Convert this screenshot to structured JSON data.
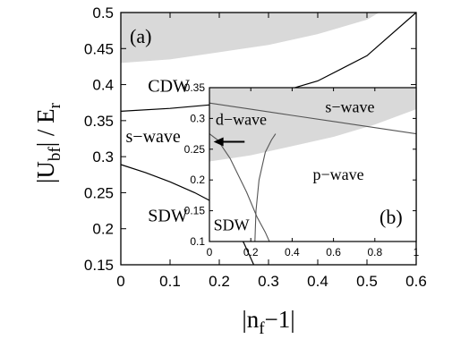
{
  "chart_data": [
    {
      "type": "line",
      "panel_label": "(a)",
      "xlabel": {
        "main": "|n",
        "sub": "f",
        "tail": "−1|"
      },
      "ylabel": {
        "main": "|U",
        "sub": "bf",
        "mid": "| / E",
        "sub2": "r"
      },
      "xlim": [
        0,
        0.6
      ],
      "ylim": [
        0.15,
        0.5
      ],
      "xticks": [
        0,
        0.1,
        0.2,
        0.3,
        0.4,
        0.5,
        0.6
      ],
      "yticks": [
        0.15,
        0.2,
        0.25,
        0.3,
        0.35,
        0.4,
        0.45,
        0.5
      ],
      "shaded_region": {
        "color": "#d9d9d9",
        "upper": [
          [
            0,
            0.5
          ],
          [
            0.6,
            0.5
          ]
        ],
        "lower": [
          [
            0,
            0.43
          ],
          [
            0.1,
            0.435
          ],
          [
            0.2,
            0.445
          ],
          [
            0.3,
            0.455
          ],
          [
            0.4,
            0.47
          ],
          [
            0.5,
            0.49
          ],
          [
            0.525,
            0.5
          ]
        ]
      },
      "series": [
        {
          "points": [
            [
              0,
              0.363
            ],
            [
              0.1,
              0.367
            ],
            [
              0.2,
              0.373
            ],
            [
              0.3,
              0.385
            ],
            [
              0.4,
              0.405
            ],
            [
              0.5,
              0.44
            ],
            [
              0.6,
              0.5
            ]
          ]
        },
        {
          "points": [
            [
              0,
              0.289
            ],
            [
              0.05,
              0.278
            ],
            [
              0.1,
              0.265
            ],
            [
              0.15,
              0.25
            ],
            [
              0.2,
              0.232
            ],
            [
              0.22,
              0.215
            ],
            [
              0.25,
              0.18
            ],
            [
              0.27,
              0.15
            ]
          ]
        }
      ],
      "region_labels": [
        {
          "text": "CDW",
          "x": 0.055,
          "y": 0.39
        },
        {
          "text": "s−wave",
          "x": 0.01,
          "y": 0.32
        },
        {
          "text": "SDW",
          "x": 0.055,
          "y": 0.21
        }
      ]
    },
    {
      "type": "line",
      "panel_label": "(b)",
      "xlim": [
        0,
        1
      ],
      "ylim": [
        0.1,
        0.35
      ],
      "xticks": [
        0,
        0.2,
        0.4,
        0.6,
        0.8,
        1
      ],
      "yticks": [
        0.1,
        0.15,
        0.2,
        0.25,
        0.3,
        0.35
      ],
      "shaded_region": {
        "color": "#d9d9d9",
        "upper": [
          [
            0,
            0.35
          ],
          [
            1,
            0.35
          ]
        ],
        "lower": [
          [
            0,
            0.23
          ],
          [
            0.2,
            0.24
          ],
          [
            0.4,
            0.255
          ],
          [
            0.6,
            0.27
          ],
          [
            0.8,
            0.29
          ],
          [
            1,
            0.315
          ]
        ]
      },
      "series": [
        {
          "points": [
            [
              0,
              0.325
            ],
            [
              0.2,
              0.315
            ],
            [
              0.4,
              0.305
            ],
            [
              0.6,
              0.295
            ],
            [
              0.8,
              0.285
            ],
            [
              1,
              0.275
            ]
          ]
        },
        {
          "points": [
            [
              0,
              0.275
            ],
            [
              0.04,
              0.265
            ],
            [
              0.1,
              0.235
            ],
            [
              0.18,
              0.18
            ],
            [
              0.23,
              0.14
            ],
            [
              0.27,
              0.115
            ],
            [
              0.29,
              0.1
            ]
          ]
        },
        {
          "points": [
            [
              0.22,
              0.1
            ],
            [
              0.225,
              0.15
            ],
            [
              0.24,
              0.2
            ],
            [
              0.27,
              0.245
            ],
            [
              0.3,
              0.265
            ],
            [
              0.32,
              0.275
            ]
          ]
        }
      ],
      "region_labels": [
        {
          "text": "s−wave",
          "x": 0.56,
          "y": 0.31
        },
        {
          "text": "d−wave",
          "x": 0.03,
          "y": 0.29
        },
        {
          "text": "p−wave",
          "x": 0.5,
          "y": 0.2
        },
        {
          "text": "SDW",
          "x": 0.02,
          "y": 0.118
        }
      ],
      "arrow": {
        "from": [
          0.17,
          0.262
        ],
        "to": [
          0.02,
          0.262
        ]
      }
    }
  ]
}
